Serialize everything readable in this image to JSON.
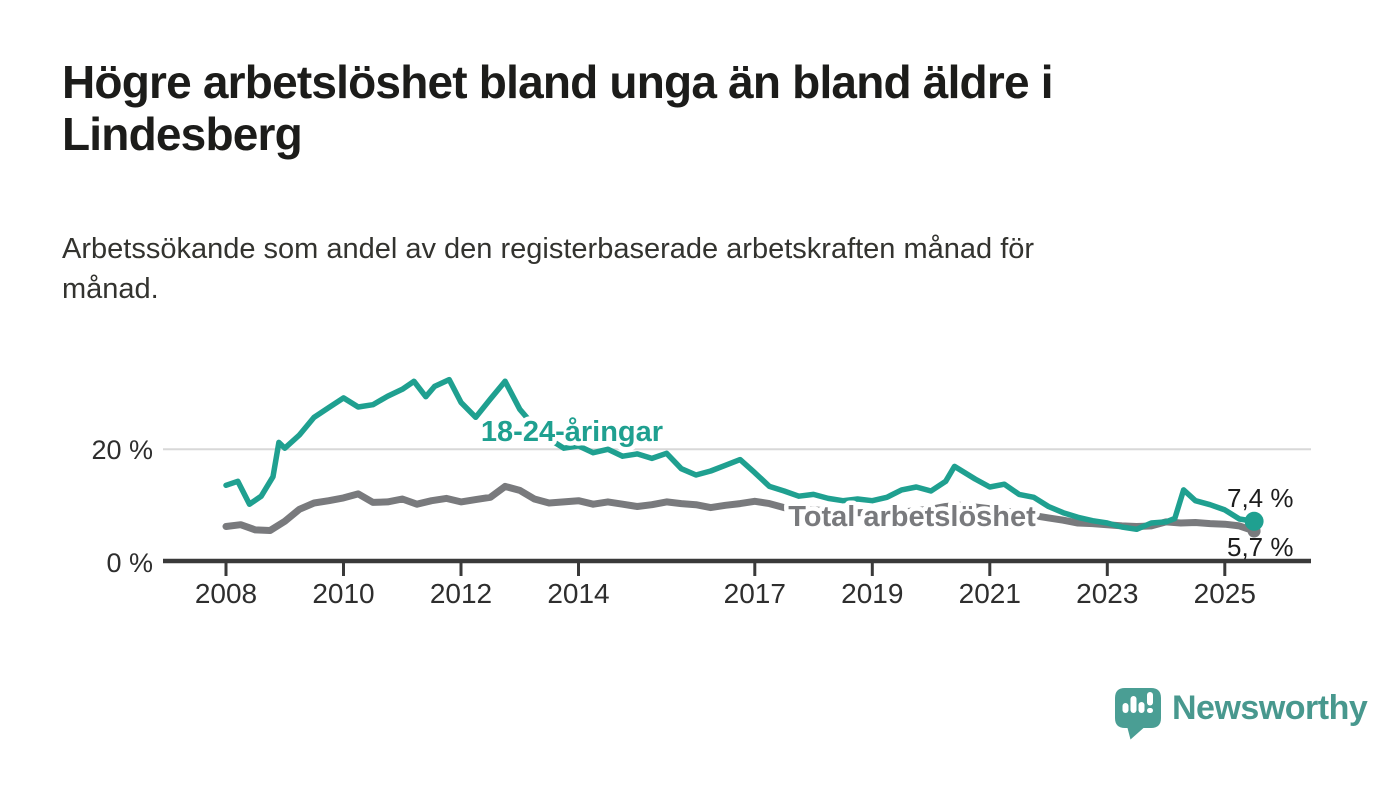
{
  "header": {
    "title_lines": [
      "Högre arbetslöshet bland unga än bland äldre i",
      "Lindesberg"
    ],
    "subtitle_lines": [
      "Arbetssökande som andel av den registerbaserade arbetskraften månad för",
      "månad."
    ]
  },
  "chart_data": {
    "type": "line",
    "title": "Högre arbetslöshet bland unga än bland äldre i Lindesberg",
    "subtitle": "Arbetssökande som andel av den registerbaserade arbetskraften månad för månad.",
    "unit": "%",
    "xlim": [
      2008,
      2025.6
    ],
    "ylim": [
      0,
      34
    ],
    "grid": "horizontal line at 20% only",
    "legend_position": "inline labels on lines",
    "x_ticks": [
      2008,
      2010,
      2012,
      2014,
      2017,
      2019,
      2021,
      2023,
      2025
    ],
    "y_ticks": [
      {
        "value": 0,
        "label": "0 %"
      },
      {
        "value": 20,
        "label": "20 %"
      }
    ],
    "series": [
      {
        "name": "18-24-åringar",
        "color": "#1fa090",
        "end_label": "7,4 %",
        "end_value": 7.4,
        "end_dot": true,
        "x": [
          2008.0,
          2008.2,
          2008.4,
          2008.6,
          2008.8,
          2008.9,
          2009.0,
          2009.25,
          2009.5,
          2009.75,
          2010.0,
          2010.25,
          2010.5,
          2010.75,
          2011.0,
          2011.2,
          2011.4,
          2011.55,
          2011.8,
          2012.0,
          2012.25,
          2012.5,
          2012.75,
          2013.0,
          2013.25,
          2013.5,
          2013.75,
          2014.0,
          2014.25,
          2014.5,
          2014.75,
          2015.0,
          2015.25,
          2015.5,
          2015.75,
          2016.0,
          2016.25,
          2016.5,
          2016.75,
          2017.0,
          2017.25,
          2017.5,
          2017.75,
          2018.0,
          2018.25,
          2018.5,
          2018.75,
          2019.0,
          2019.25,
          2019.5,
          2019.75,
          2020.0,
          2020.25,
          2020.4,
          2020.75,
          2021.0,
          2021.25,
          2021.5,
          2021.75,
          2022.0,
          2022.25,
          2022.5,
          2022.75,
          2023.0,
          2023.25,
          2023.5,
          2023.75,
          2024.0,
          2024.15,
          2024.3,
          2024.5,
          2024.75,
          2025.0,
          2025.25,
          2025.5
        ],
        "values": [
          13.7,
          14.4,
          10.4,
          11.8,
          15.2,
          21.2,
          20.2,
          22.5,
          25.6,
          27.3,
          29.0,
          27.4,
          27.8,
          29.3,
          30.5,
          31.9,
          29.2,
          31.0,
          32.2,
          28.2,
          25.6,
          28.8,
          31.9,
          27.0,
          24.0,
          21.8,
          20.2,
          20.6,
          19.4,
          20.0,
          18.8,
          19.2,
          18.4,
          19.3,
          16.6,
          15.5,
          16.2,
          17.2,
          18.2,
          15.9,
          13.5,
          12.7,
          11.8,
          12.1,
          11.4,
          11.0,
          11.3,
          11.0,
          11.6,
          12.9,
          13.4,
          12.7,
          14.4,
          17.0,
          14.8,
          13.4,
          13.9,
          12.1,
          11.6,
          10.0,
          8.9,
          8.1,
          7.5,
          7.1,
          6.4,
          6.0,
          7.1,
          7.3,
          7.9,
          12.9,
          11.0,
          10.3,
          9.4,
          7.8,
          7.4
        ]
      },
      {
        "name": "Total arbetslöshet",
        "color": "#797a7d",
        "end_label": "5,7 %",
        "end_value": 5.7,
        "end_dot": true,
        "x": [
          2008.0,
          2008.25,
          2008.5,
          2008.75,
          2009.0,
          2009.25,
          2009.5,
          2009.75,
          2010.0,
          2010.25,
          2010.5,
          2010.75,
          2011.0,
          2011.25,
          2011.5,
          2011.75,
          2012.0,
          2012.25,
          2012.5,
          2012.75,
          2013.0,
          2013.25,
          2013.5,
          2013.75,
          2014.0,
          2014.25,
          2014.5,
          2014.75,
          2015.0,
          2015.25,
          2015.5,
          2015.75,
          2016.0,
          2016.25,
          2016.5,
          2016.75,
          2017.0,
          2017.25,
          2017.5,
          2017.75,
          2018.0,
          2018.25,
          2018.5,
          2018.75,
          2019.0,
          2019.25,
          2019.5,
          2019.75,
          2020.0,
          2020.25,
          2020.5,
          2020.75,
          2021.0,
          2021.25,
          2021.5,
          2021.75,
          2022.0,
          2022.25,
          2022.5,
          2022.75,
          2023.0,
          2023.25,
          2023.5,
          2023.75,
          2024.0,
          2024.25,
          2024.5,
          2024.75,
          2025.0,
          2025.25,
          2025.5
        ],
        "values": [
          6.5,
          6.8,
          5.9,
          5.8,
          7.4,
          9.5,
          10.6,
          11.0,
          11.5,
          12.2,
          10.7,
          10.8,
          11.3,
          10.4,
          11.0,
          11.4,
          10.8,
          11.2,
          11.6,
          13.5,
          12.8,
          11.3,
          10.6,
          10.8,
          11.0,
          10.4,
          10.8,
          10.4,
          10.0,
          10.3,
          10.8,
          10.5,
          10.3,
          9.8,
          10.2,
          10.5,
          10.9,
          10.5,
          9.8,
          9.6,
          9.4,
          9.2,
          9.0,
          8.9,
          9.0,
          9.2,
          9.0,
          9.3,
          9.5,
          10.0,
          10.2,
          9.9,
          9.6,
          9.2,
          8.8,
          8.4,
          8.0,
          7.6,
          7.1,
          7.0,
          6.8,
          6.6,
          6.5,
          6.6,
          7.3,
          7.1,
          7.2,
          7.0,
          6.9,
          6.6,
          5.7
        ]
      }
    ],
    "colors": {
      "youth_line": "#1fa090",
      "total_line": "#797a7d",
      "gridline": "#d8d8d8",
      "axis": "#3a3a3a",
      "brand_teal": "#4a9e94"
    }
  },
  "footer": {
    "brand": "Newsworthy"
  }
}
